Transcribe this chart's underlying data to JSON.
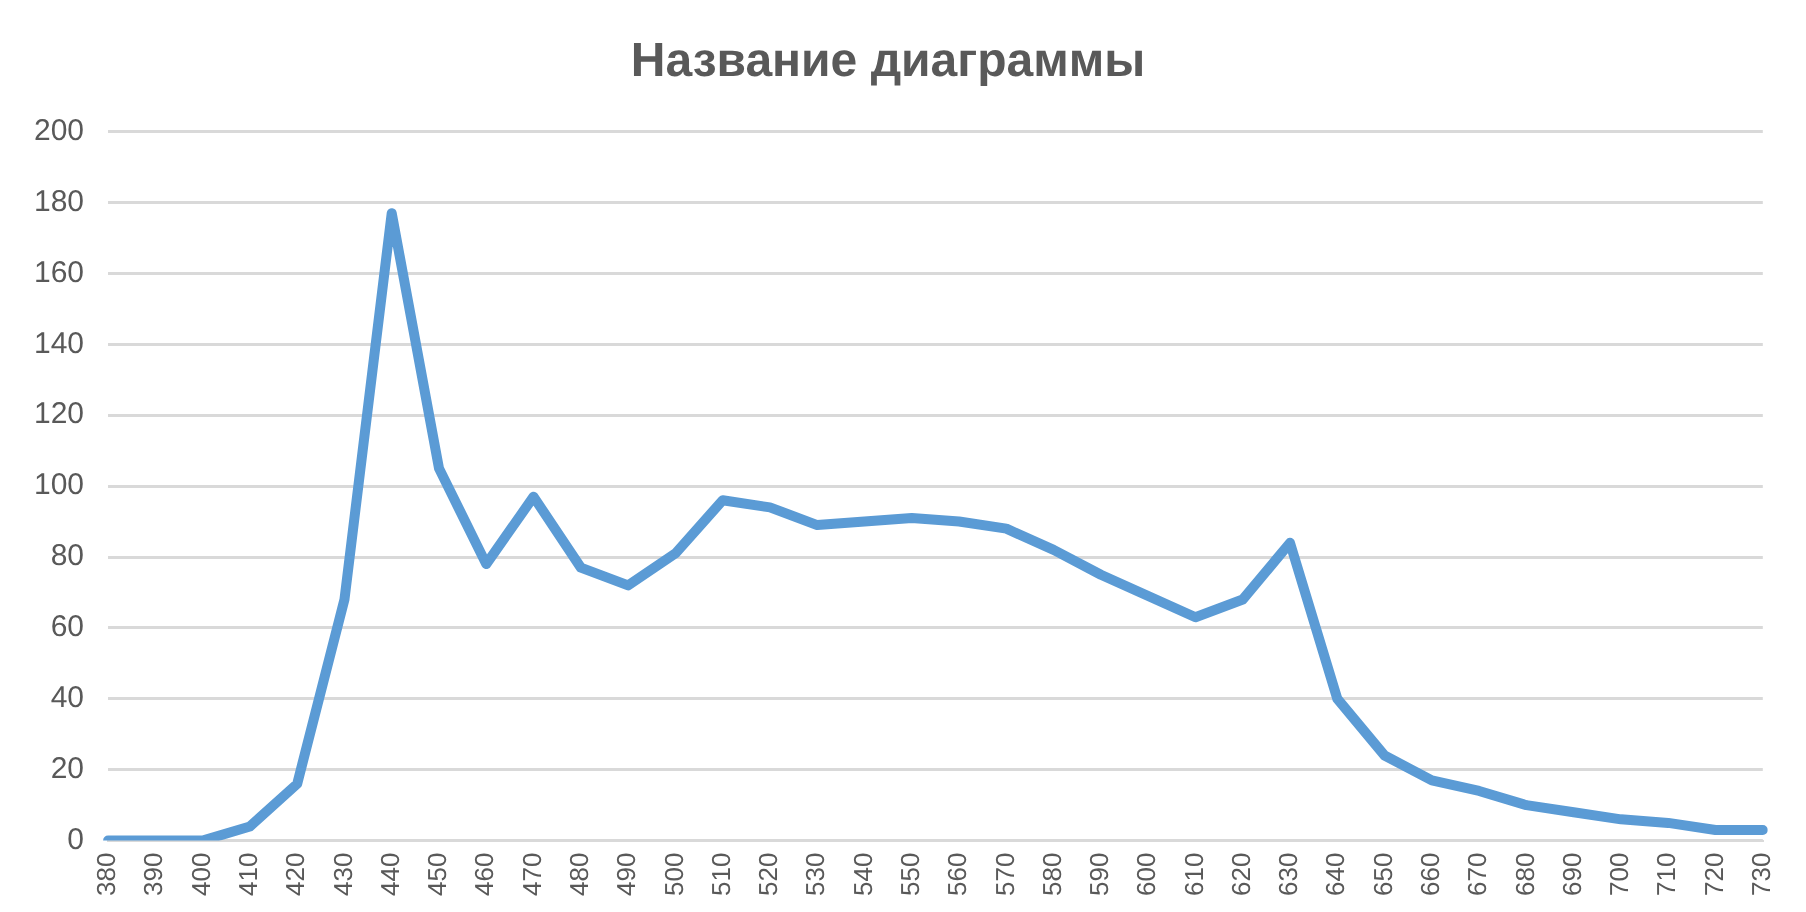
{
  "chart_data": {
    "type": "line",
    "title": "Название диаграммы",
    "categories": [
      "380",
      "390",
      "400",
      "410",
      "420",
      "430",
      "440",
      "450",
      "460",
      "470",
      "480",
      "490",
      "500",
      "510",
      "520",
      "530",
      "540",
      "550",
      "560",
      "570",
      "580",
      "590",
      "600",
      "610",
      "620",
      "630",
      "640",
      "650",
      "660",
      "670",
      "680",
      "690",
      "700",
      "710",
      "720",
      "730"
    ],
    "series": [
      {
        "color": "#5b9bd5",
        "values": [
          0,
          0,
          0,
          4,
          16,
          68,
          177,
          105,
          78,
          97,
          77,
          72,
          81,
          96,
          94,
          89,
          90,
          91,
          90,
          88,
          82,
          75,
          69,
          63,
          68,
          84,
          40,
          24,
          17,
          14,
          10,
          8,
          6,
          5,
          3,
          3
        ]
      }
    ],
    "ylim": [
      0,
      200
    ],
    "yticks": [
      0,
      20,
      40,
      60,
      80,
      100,
      120,
      140,
      160,
      180,
      200
    ],
    "grid": "y",
    "legend": false,
    "marker": "none",
    "line_style": "solid"
  }
}
